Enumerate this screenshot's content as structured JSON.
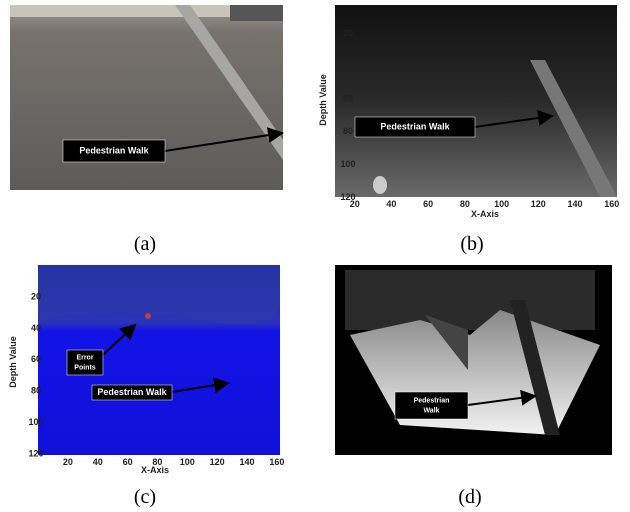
{
  "panels": [
    {
      "caption": "(a)",
      "annotations": [
        {
          "lines": [
            "Pedestrian Walk"
          ]
        }
      ]
    },
    {
      "caption": "(b)",
      "annotations": [
        {
          "lines": [
            "Pedestrian Walk"
          ]
        }
      ],
      "y_axis_label": "Depth Value",
      "x_axis_label": "X-Axis",
      "yticks": [
        20,
        40,
        60,
        80,
        100,
        120
      ],
      "xticks": [
        20,
        40,
        60,
        80,
        100,
        120,
        140,
        160
      ]
    },
    {
      "caption": "(c)",
      "annotations": [
        {
          "lines": [
            "Error",
            "Points"
          ]
        },
        {
          "lines": [
            "Pedestrian Walk"
          ]
        }
      ],
      "y_axis_label": "Depth Value",
      "x_axis_label": "X-Axis",
      "yticks": [
        20,
        40,
        60,
        80,
        100,
        120
      ],
      "xticks": [
        20,
        40,
        60,
        80,
        100,
        120,
        140,
        160
      ]
    },
    {
      "caption": "(d)",
      "annotations": [
        {
          "lines": [
            "Pedestrian",
            "Walk"
          ]
        }
      ]
    }
  ]
}
